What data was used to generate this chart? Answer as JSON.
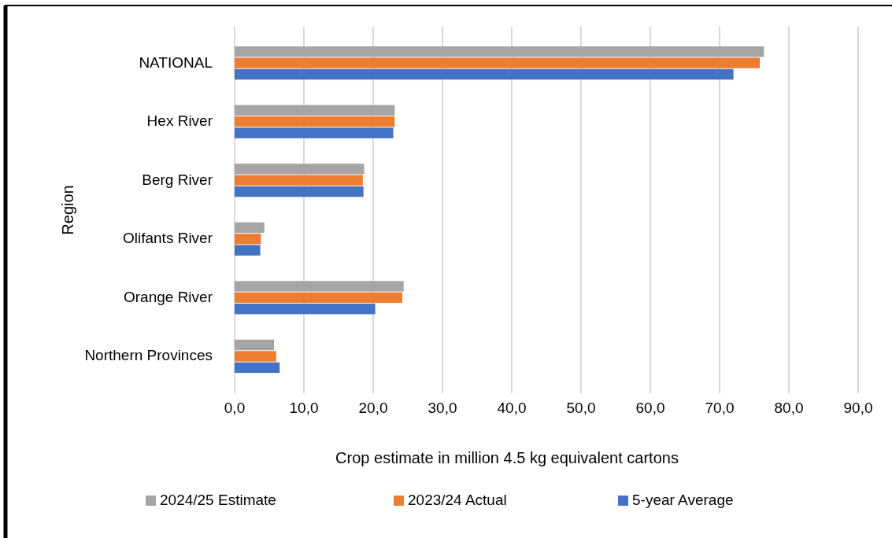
{
  "chart_data": {
    "type": "bar",
    "orientation": "horizontal",
    "xlabel": "Crop estimate in million 4.5 kg equivalent cartons",
    "ylabel": "Region",
    "categories": [
      "NATIONAL",
      "Hex River",
      "Berg River",
      "Olifants River",
      "Orange River",
      "Northern Provinces"
    ],
    "series": [
      {
        "name": "2024/25 Estimate",
        "color": "#a5a5a5",
        "values": [
          76.4,
          23.1,
          18.7,
          4.3,
          24.4,
          5.7
        ]
      },
      {
        "name": "2023/24 Actual",
        "color": "#ed7d31",
        "values": [
          75.8,
          23.1,
          18.5,
          3.8,
          24.2,
          6.0
        ]
      },
      {
        "name": "5-year Average",
        "color": "#4472c4",
        "values": [
          72.0,
          22.9,
          18.6,
          3.7,
          20.3,
          6.5
        ]
      }
    ],
    "xlim": [
      0,
      90
    ],
    "xticks": [
      {
        "value": 0,
        "label": "0,0"
      },
      {
        "value": 10,
        "label": "10,0"
      },
      {
        "value": 20,
        "label": "20,0"
      },
      {
        "value": 30,
        "label": "30,0"
      },
      {
        "value": 40,
        "label": "40,0"
      },
      {
        "value": 50,
        "label": "50,0"
      },
      {
        "value": 60,
        "label": "60,0"
      },
      {
        "value": 70,
        "label": "70,0"
      },
      {
        "value": 80,
        "label": "80,0"
      },
      {
        "value": 90,
        "label": "90,0"
      }
    ],
    "grid": "x",
    "legend": "bottom"
  }
}
